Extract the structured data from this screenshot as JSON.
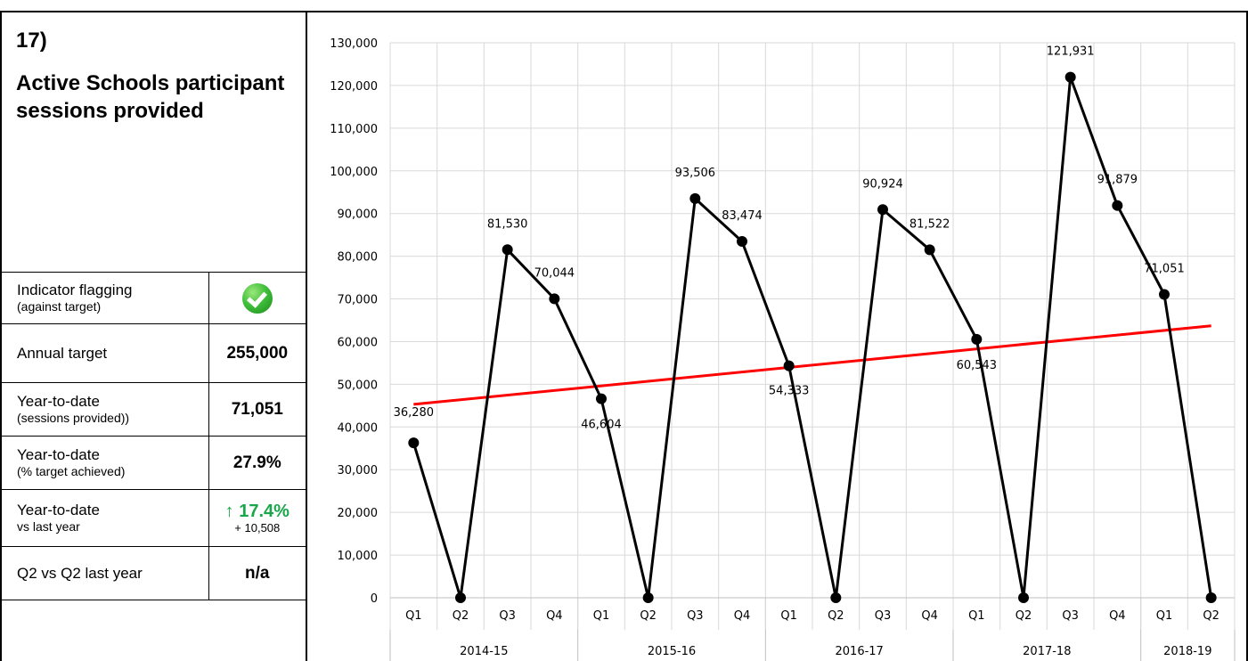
{
  "indicator": {
    "number": "17)",
    "title": "Active Schools participant sessions provided"
  },
  "kpis": {
    "flagging_label": "Indicator flagging",
    "flagging_sub": "(against target)",
    "flagging_status_icon": "green-check-icon",
    "annual_target_label": "Annual target",
    "annual_target_value": "255,000",
    "ytd_sessions_label": "Year-to-date",
    "ytd_sessions_sub": "(sessions provided))",
    "ytd_sessions_value": "71,051",
    "ytd_pct_label": "Year-to-date",
    "ytd_pct_sub": "(% target achieved)",
    "ytd_pct_value": "27.9%",
    "ytd_vs_label": "Year-to-date",
    "ytd_vs_sub": "vs last year",
    "ytd_vs_arrow": "↑",
    "ytd_vs_change": "17.4%",
    "ytd_vs_diff": "+ 10,508",
    "q2_label": "Q2 vs Q2 last year",
    "q2_value": "n/a"
  },
  "chart_data": {
    "type": "line",
    "title": "",
    "xlabel": "",
    "ylabel": "",
    "ylim": [
      0,
      130000
    ],
    "yticks": [
      0,
      10000,
      20000,
      30000,
      40000,
      50000,
      60000,
      70000,
      80000,
      90000,
      100000,
      110000,
      120000,
      130000
    ],
    "ytick_labels": [
      "0",
      "10,000",
      "20,000",
      "30,000",
      "40,000",
      "50,000",
      "60,000",
      "70,000",
      "80,000",
      "90,000",
      "100,000",
      "110,000",
      "120,000",
      "130,000"
    ],
    "grid": true,
    "legend": "none",
    "x": [
      "Q1",
      "Q2",
      "Q3",
      "Q4",
      "Q1",
      "Q2",
      "Q3",
      "Q4",
      "Q1",
      "Q2",
      "Q3",
      "Q4",
      "Q1",
      "Q2",
      "Q3",
      "Q4",
      "Q1",
      "Q2"
    ],
    "groups": [
      {
        "label": "2014-15",
        "count": 4
      },
      {
        "label": "2015-16",
        "count": 4
      },
      {
        "label": "2016-17",
        "count": 4
      },
      {
        "label": "2017-18",
        "count": 4
      },
      {
        "label": "2018-19",
        "count": 2
      }
    ],
    "series": [
      {
        "values": [
          36280,
          0,
          81530,
          70044,
          46604,
          0,
          93506,
          83474,
          54333,
          0,
          90924,
          81522,
          60543,
          0,
          121931,
          91879,
          71051,
          0
        ],
        "labels": [
          "36,280",
          "",
          "81,530",
          "70,044",
          "46,604",
          "",
          "93,506",
          "83,474",
          "54,333",
          "",
          "90,924",
          "81,522",
          "60,543",
          "",
          "121,931",
          "91,879",
          "71,051",
          ""
        ],
        "color": "#000000"
      }
    ],
    "trendline": {
      "start": 45300,
      "end": 63700,
      "color": "#ff0000"
    }
  }
}
